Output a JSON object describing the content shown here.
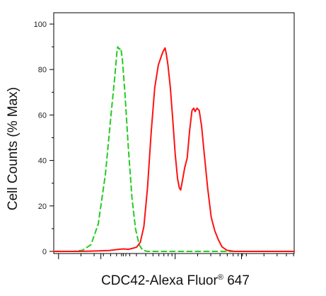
{
  "chart_data": {
    "type": "line",
    "xlabel": "CDC42-Alexa Fluor",
    "xlabel_superscript": "®",
    "xlabel_suffix": " 647",
    "ylabel": "Cell Counts (% Max)",
    "y_ticks": [
      "0",
      "20",
      "40",
      "60",
      "80",
      "100"
    ],
    "ylim": [
      0,
      100
    ],
    "x_scale": "log (biexponential display, unlabeled)",
    "xlim": [
      0,
      1
    ],
    "grid": false,
    "legend": "none",
    "series": [
      {
        "style": "dashed",
        "color": "#22cc22",
        "points": [
          [
            0.0,
            0
          ],
          [
            0.08,
            0
          ],
          [
            0.12,
            0.5
          ],
          [
            0.155,
            3
          ],
          [
            0.185,
            12
          ],
          [
            0.215,
            34
          ],
          [
            0.24,
            62
          ],
          [
            0.255,
            78
          ],
          [
            0.262,
            87
          ],
          [
            0.266,
            90
          ],
          [
            0.272,
            89
          ],
          [
            0.279,
            89.5
          ],
          [
            0.286,
            84
          ],
          [
            0.296,
            70
          ],
          [
            0.31,
            46
          ],
          [
            0.325,
            24
          ],
          [
            0.34,
            10
          ],
          [
            0.355,
            3
          ],
          [
            0.37,
            0.5
          ],
          [
            0.39,
            0
          ],
          [
            0.47,
            0
          ],
          [
            0.51,
            0
          ],
          [
            0.53,
            0
          ],
          [
            1.0,
            0
          ]
        ]
      },
      {
        "style": "solid",
        "color": "#ff1111",
        "points": [
          [
            0.0,
            0
          ],
          [
            0.1,
            0
          ],
          [
            0.18,
            0.2
          ],
          [
            0.23,
            0.4
          ],
          [
            0.27,
            0.9
          ],
          [
            0.29,
            1.1
          ],
          [
            0.31,
            0.9
          ],
          [
            0.33,
            1.4
          ],
          [
            0.345,
            1.9
          ],
          [
            0.36,
            4
          ],
          [
            0.375,
            11
          ],
          [
            0.39,
            28
          ],
          [
            0.405,
            52
          ],
          [
            0.42,
            72
          ],
          [
            0.435,
            82
          ],
          [
            0.448,
            86
          ],
          [
            0.455,
            88
          ],
          [
            0.463,
            89.5
          ],
          [
            0.468,
            87
          ],
          [
            0.475,
            82
          ],
          [
            0.485,
            72
          ],
          [
            0.495,
            58
          ],
          [
            0.505,
            43
          ],
          [
            0.515,
            32
          ],
          [
            0.522,
            28
          ],
          [
            0.528,
            27
          ],
          [
            0.535,
            31
          ],
          [
            0.545,
            37
          ],
          [
            0.555,
            41
          ],
          [
            0.565,
            53
          ],
          [
            0.575,
            62
          ],
          [
            0.582,
            63
          ],
          [
            0.588,
            61.5
          ],
          [
            0.596,
            63
          ],
          [
            0.605,
            62
          ],
          [
            0.615,
            55
          ],
          [
            0.625,
            44
          ],
          [
            0.64,
            28
          ],
          [
            0.655,
            15
          ],
          [
            0.67,
            9
          ],
          [
            0.685,
            5
          ],
          [
            0.7,
            2
          ],
          [
            0.72,
            0.5
          ],
          [
            0.75,
            0
          ],
          [
            1.0,
            0
          ]
        ]
      }
    ]
  }
}
